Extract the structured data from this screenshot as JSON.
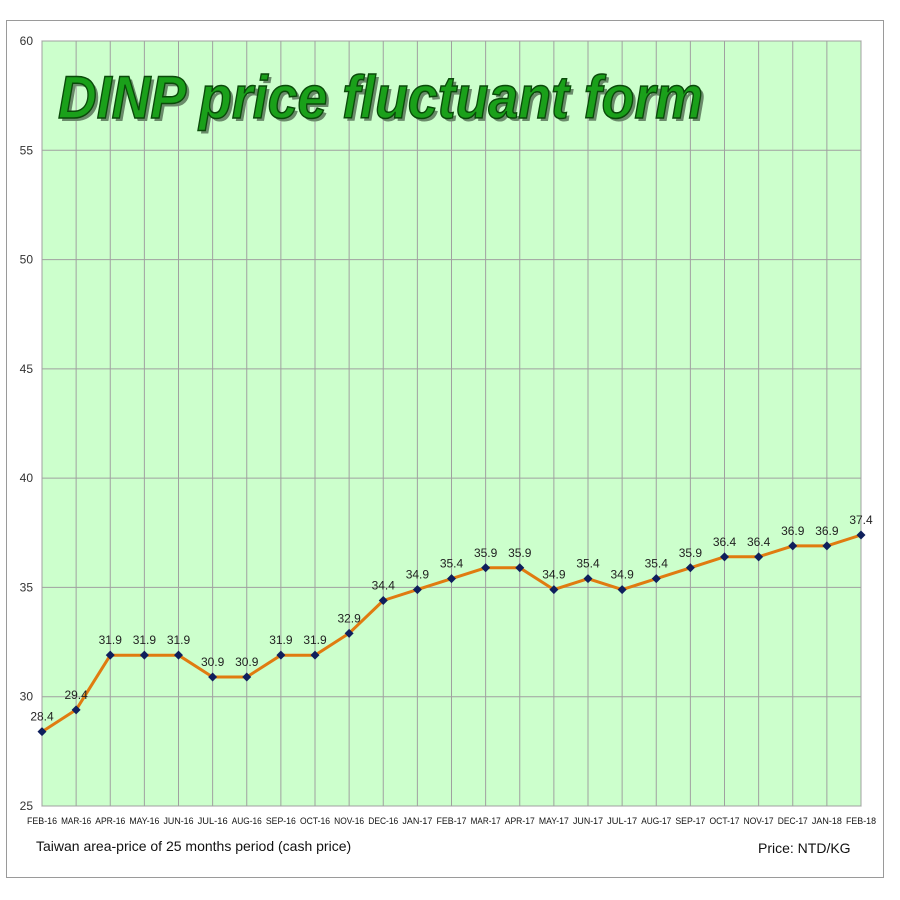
{
  "chart_data": {
    "type": "line",
    "title": "DINP price fluctuant form",
    "xlabel": "",
    "ylabel": "",
    "categories": [
      "FEB-16",
      "MAR-16",
      "APR-16",
      "MAY-16",
      "JUN-16",
      "JUL-16",
      "AUG-16",
      "SEP-16",
      "OCT-16",
      "NOV-16",
      "DEC-16",
      "JAN-17",
      "FEB-17",
      "MAR-17",
      "APR-17",
      "MAY-17",
      "JUN-17",
      "JUL-17",
      "AUG-17",
      "SEP-17",
      "OCT-17",
      "NOV-17",
      "DEC-17",
      "JAN-18",
      "FEB-18"
    ],
    "values": [
      28.4,
      29.4,
      31.9,
      31.9,
      31.9,
      30.9,
      30.9,
      31.9,
      31.9,
      32.9,
      34.4,
      34.9,
      35.4,
      35.9,
      35.9,
      34.9,
      35.4,
      34.9,
      35.4,
      35.9,
      36.4,
      36.4,
      36.9,
      36.9,
      37.4
    ],
    "data_labels": [
      "28.4",
      "29.4",
      "31.9",
      "31.9",
      "31.9",
      "30.9",
      "30.9",
      "31.9",
      "31.9",
      "32.9",
      "34.4",
      "34.9",
      "35.4",
      "35.9",
      "35.9",
      "34.9",
      "35.4",
      "34.9",
      "35.4",
      "35.9",
      "36.4",
      "36.4",
      "36.9",
      "36.9",
      "37.4"
    ],
    "ylim": [
      25,
      60
    ],
    "yticks": [
      25,
      30,
      35,
      40,
      45,
      50,
      55,
      60
    ],
    "grid": true,
    "legend": "none",
    "footnote_left": "Taiwan area-price of 25 months period (cash price)",
    "footnote_right": "Price: NTD/KG",
    "colors": {
      "plot_bg": "#ccffcc",
      "grid": "#a0a0a0",
      "line": "#e07b10",
      "marker": "#0f1f5c",
      "title_fill": "#1aa01a",
      "title_stroke": "#0a4a0a"
    }
  }
}
